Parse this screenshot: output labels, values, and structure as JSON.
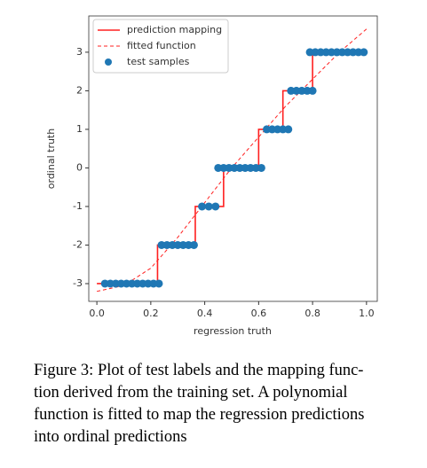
{
  "chart_data": {
    "type": "line",
    "xlabel": "regression truth",
    "ylabel": "ordinal truth",
    "xlim": [
      -0.03,
      1.04
    ],
    "ylim": [
      -3.46,
      3.94
    ],
    "xticks": [
      {
        "value": 0,
        "label": "0.0"
      },
      0.2,
      0.4,
      0.6,
      0.8,
      {
        "value": 1,
        "label": "1.0"
      }
    ],
    "yticks": [
      -3,
      -2,
      -1,
      0,
      1,
      2,
      3
    ],
    "legend": "upper left",
    "series": [
      {
        "name": "prediction mapping",
        "color": "#ff2020",
        "style": "solid",
        "x": [
          0,
          0.225,
          0.225,
          0.365,
          0.365,
          0.47,
          0.47,
          0.6,
          0.6,
          0.69,
          0.69,
          0.8,
          0.8,
          1.0
        ],
        "values": [
          -3,
          -3,
          -2,
          -2,
          -1,
          -1,
          0,
          0,
          1,
          1,
          2,
          2,
          3,
          3
        ]
      },
      {
        "name": "fitted function",
        "color": "#ff2020",
        "style": "dashed",
        "x": [
          0,
          0.1,
          0.2,
          0.3,
          0.4,
          0.5,
          0.6,
          0.7,
          0.8,
          0.9,
          1.0
        ],
        "values": [
          -3.2,
          -3.05,
          -2.6,
          -1.8,
          -0.9,
          0,
          0.8,
          1.6,
          2.3,
          3.0,
          3.6
        ]
      },
      {
        "name": "test samples",
        "color": "#1f77b4",
        "style": "markers",
        "x": [
          0.03,
          0.05,
          0.07,
          0.09,
          0.11,
          0.13,
          0.15,
          0.17,
          0.19,
          0.21,
          0.23,
          0.24,
          0.26,
          0.28,
          0.3,
          0.32,
          0.34,
          0.36,
          0.39,
          0.415,
          0.44,
          0.45,
          0.47,
          0.49,
          0.51,
          0.53,
          0.55,
          0.57,
          0.59,
          0.61,
          0.63,
          0.65,
          0.67,
          0.69,
          0.71,
          0.72,
          0.74,
          0.76,
          0.78,
          0.8,
          0.79,
          0.81,
          0.83,
          0.85,
          0.87,
          0.89,
          0.91,
          0.93,
          0.95,
          0.97,
          0.99
        ],
        "values": [
          -3,
          -3,
          -3,
          -3,
          -3,
          -3,
          -3,
          -3,
          -3,
          -3,
          -3,
          -2,
          -2,
          -2,
          -2,
          -2,
          -2,
          -2,
          -1,
          -1,
          -1,
          0,
          0,
          0,
          0,
          0,
          0,
          0,
          0,
          0,
          1,
          1,
          1,
          1,
          1,
          2,
          2,
          2,
          2,
          2,
          3,
          3,
          3,
          3,
          3,
          3,
          3,
          3,
          3,
          3,
          3
        ]
      }
    ]
  },
  "caption": [
    "Figure 3: Plot of test labels and the mapping func-",
    "tion derived from the training set.  A polynomial",
    "function is fitted to map the regression predictions",
    "into ordinal predictions"
  ]
}
